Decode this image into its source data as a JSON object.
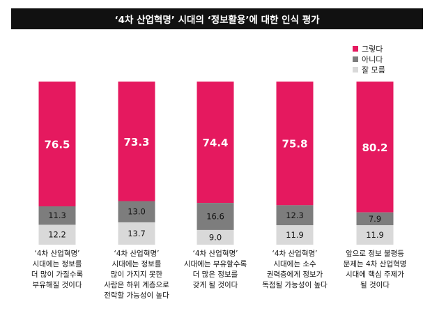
{
  "chart_data": {
    "type": "bar",
    "stacked": true,
    "title": "‘4차 산업혁명’ 시대의 ‘정보활용’에 대한 인식 평가",
    "categories": [
      [
        "‘4차 산업혁명’",
        "시대에는 정보를",
        "더 많이 가질수록",
        "부유해질 것이다"
      ],
      [
        "‘4차 산업혁명’",
        "시대에는 정보를",
        "많이 가지지 못한",
        "사람은 하위 계층으로",
        "전락할 가능성이 높다"
      ],
      [
        "‘4차 산업혁명’",
        "시대에는 부유할수록",
        "더 많은 정보를",
        "갖게 될 것이다"
      ],
      [
        "‘4차 산업혁명’",
        "시대에는 소수",
        "권력층에게 정보가",
        "독점될 가능성이 높다"
      ],
      [
        "앞으로 정보 불평등",
        "문제는 4차 산업혁명",
        "시대에 핵심 주제가",
        "될 것이다"
      ]
    ],
    "series": [
      {
        "name": "그렇다",
        "color": "#e5195f",
        "values": [
          76.5,
          73.3,
          74.4,
          75.8,
          80.2
        ],
        "labels": [
          "76.5",
          "73.3",
          "74.4",
          "75.8",
          "80.2"
        ]
      },
      {
        "name": "아니다",
        "color": "#7d7d7d",
        "values": [
          11.3,
          13.0,
          16.6,
          12.3,
          7.9
        ],
        "labels": [
          "11.3",
          "13.0",
          "16.6",
          "12.3",
          "7.9"
        ]
      },
      {
        "name": "잘 모름",
        "color": "#d9d9d9",
        "values": [
          12.2,
          13.7,
          9.0,
          11.9,
          11.9
        ],
        "labels": [
          "12.2",
          "13.7",
          "9.0",
          "11.9",
          "11.9"
        ]
      }
    ],
    "ylim": [
      0,
      100
    ],
    "legend_position": "top-right",
    "grid": false
  }
}
